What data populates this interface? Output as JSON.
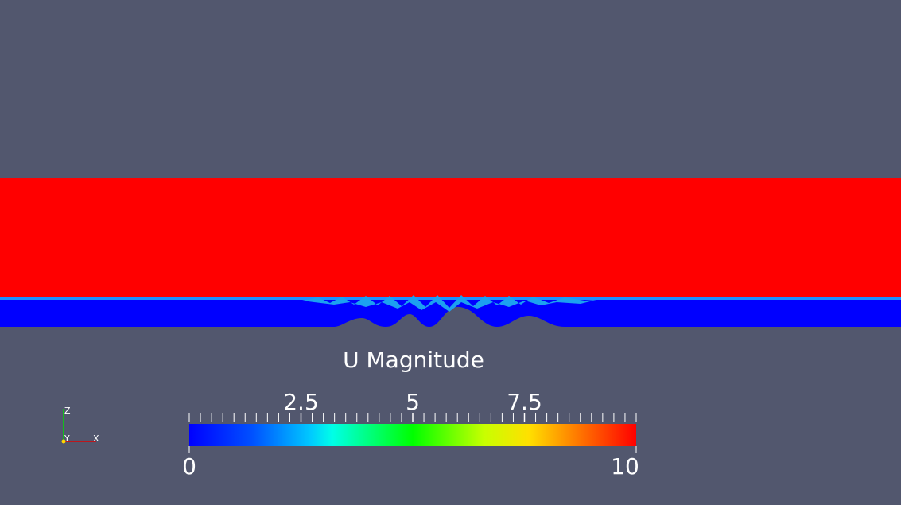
{
  "legend": {
    "title": "U Magnitude",
    "range": [
      0,
      10
    ],
    "ticks": [
      2.5,
      5,
      7.5
    ],
    "minor_tick_step": 0.25
  },
  "axes": {
    "z": "Z",
    "y": "Y",
    "x": "X"
  }
}
